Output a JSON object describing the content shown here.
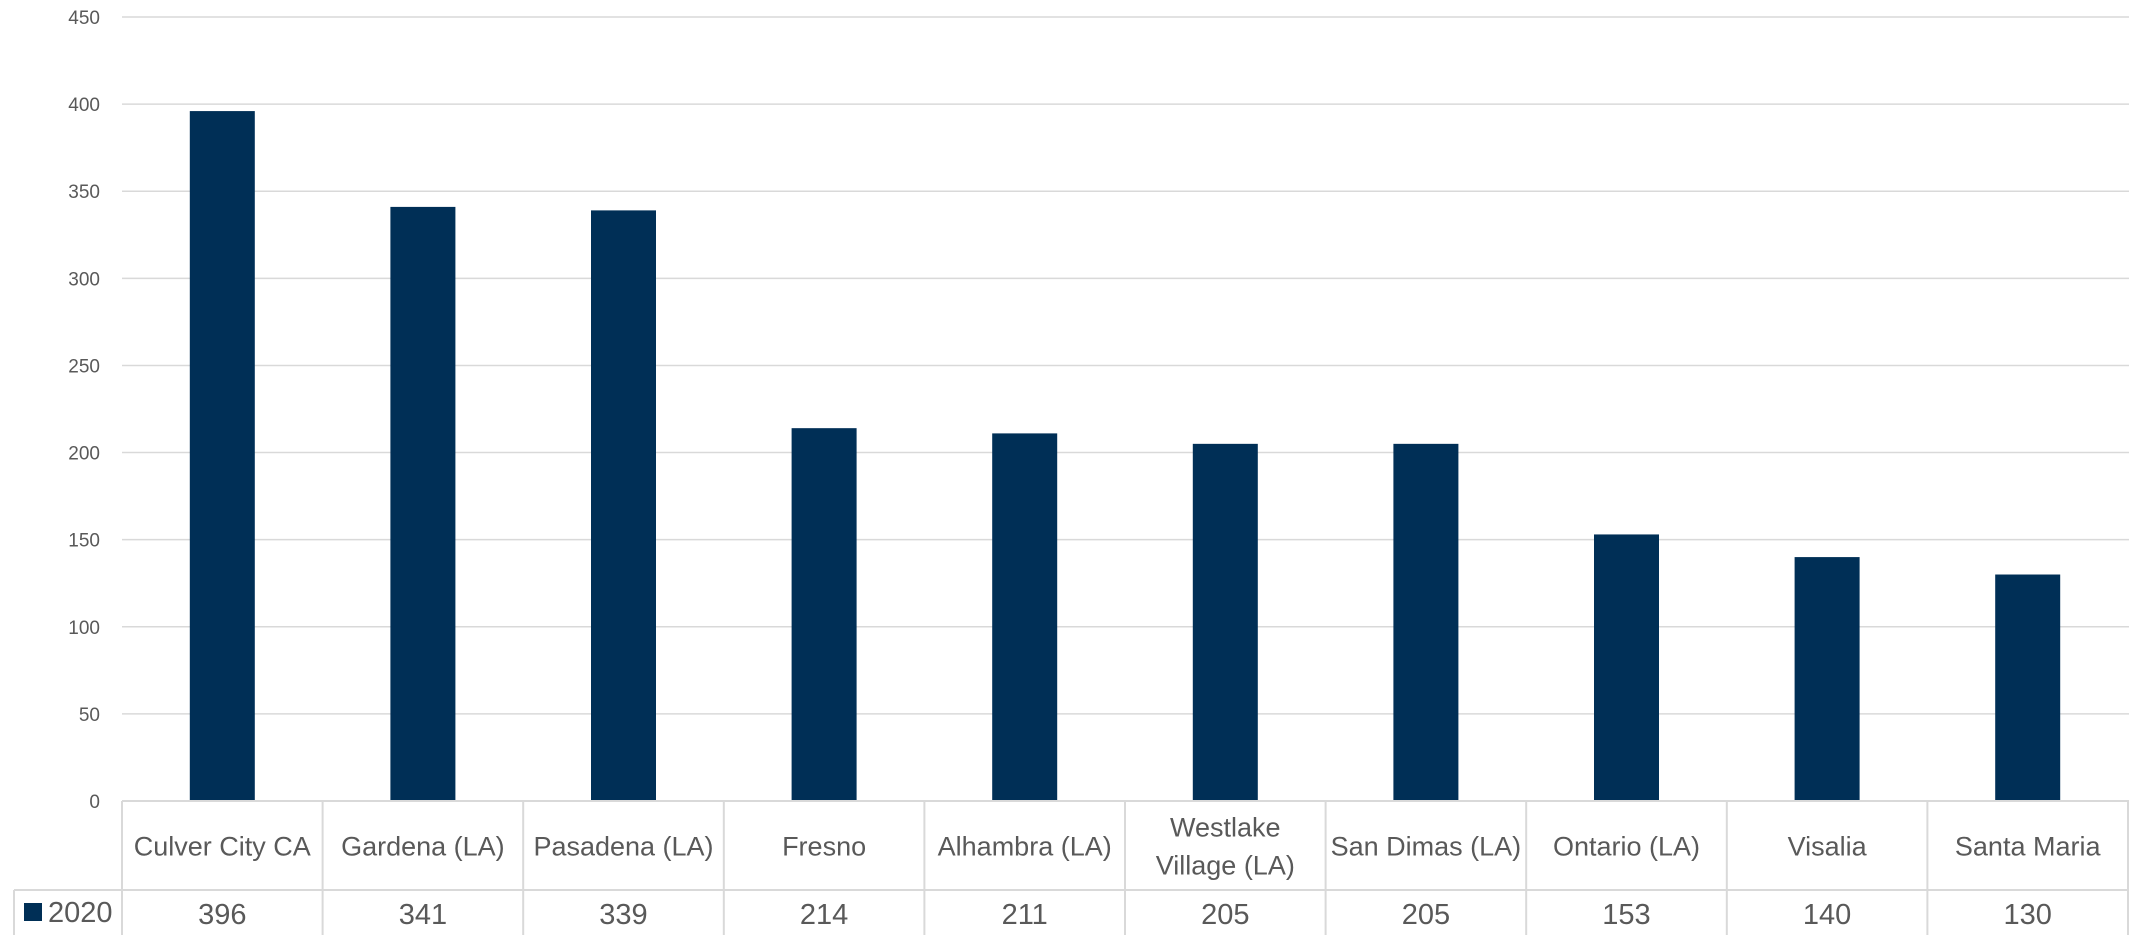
{
  "chart_data": {
    "type": "bar",
    "categories": [
      [
        "Culver City CA"
      ],
      [
        "Gardena (LA)"
      ],
      [
        "Pasadena (LA)"
      ],
      [
        "Fresno"
      ],
      [
        "Alhambra (LA)"
      ],
      [
        "Westlake",
        "Village (LA)"
      ],
      [
        "San Dimas (LA)"
      ],
      [
        "Ontario (LA)"
      ],
      [
        "Visalia"
      ],
      [
        "Santa Maria"
      ]
    ],
    "series": [
      {
        "name": "2020",
        "values": [
          396,
          341,
          339,
          214,
          211,
          205,
          205,
          153,
          140,
          130
        ],
        "color": "#002f56"
      }
    ],
    "data_labels": [
      "396",
      "341",
      "339",
      "214",
      "211",
      "205",
      "205",
      "153",
      "140",
      "130"
    ],
    "y_ticks": [
      "0",
      "50",
      "100",
      "150",
      "200",
      "250",
      "300",
      "350",
      "400",
      "450"
    ],
    "ylim": [
      0,
      450
    ],
    "grid": true,
    "legend": "data-table",
    "title": "",
    "xlabel": "",
    "ylabel": ""
  }
}
